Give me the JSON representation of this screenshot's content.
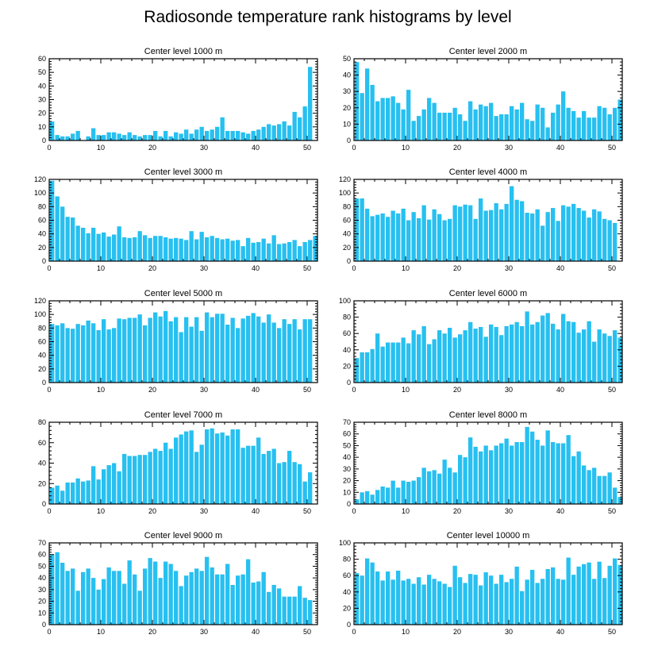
{
  "colors": {
    "bar": "#27c0f0",
    "axis": "#000000",
    "background": "#ffffff"
  },
  "chart_data": {
    "type": "bar",
    "title": "Radiosonde temperature rank histograms by level",
    "xlim": [
      0,
      52
    ],
    "x_ticks": [
      0,
      10,
      20,
      30,
      40,
      50
    ],
    "panels": [
      {
        "title": "Center level 1000 m",
        "ylim": [
          0,
          60
        ],
        "y_ticks": [
          0,
          10,
          20,
          30,
          40,
          50,
          60
        ],
        "values": [
          14,
          4,
          3,
          3,
          5,
          7,
          0,
          3,
          9,
          4,
          4,
          6,
          6,
          5,
          4,
          6,
          4,
          3,
          4,
          4,
          7,
          3,
          7,
          3,
          6,
          5,
          8,
          5,
          8,
          10,
          7,
          8,
          10,
          17,
          7,
          7,
          7,
          6,
          5,
          7,
          8,
          10,
          12,
          11,
          12,
          14,
          11,
          21,
          17,
          25,
          54
        ]
      },
      {
        "title": "Center level 2000 m",
        "ylim": [
          0,
          50
        ],
        "y_ticks": [
          0,
          10,
          20,
          30,
          40,
          50
        ],
        "values": [
          48,
          29,
          44,
          34,
          24,
          26,
          26,
          27,
          23,
          19,
          31,
          12,
          15,
          19,
          26,
          23,
          17,
          17,
          17,
          20,
          16,
          12,
          24,
          19,
          22,
          21,
          23,
          15,
          16,
          16,
          21,
          19,
          23,
          13,
          12,
          22,
          20,
          8,
          17,
          22,
          30,
          20,
          18,
          14,
          18,
          14,
          14,
          21,
          20,
          16,
          20,
          25
        ]
      },
      {
        "title": "Center level 3000 m",
        "ylim": [
          0,
          120
        ],
        "y_ticks": [
          0,
          20,
          40,
          60,
          80,
          100,
          120
        ],
        "values": [
          118,
          95,
          80,
          65,
          64,
          52,
          49,
          41,
          49,
          40,
          42,
          36,
          39,
          51,
          35,
          34,
          35,
          44,
          38,
          34,
          37,
          37,
          35,
          33,
          34,
          33,
          31,
          44,
          32,
          43,
          35,
          37,
          34,
          32,
          33,
          30,
          31,
          22,
          34,
          27,
          28,
          33,
          26,
          38,
          25,
          26,
          28,
          31,
          22,
          28,
          31,
          37
        ]
      },
      {
        "title": "Center level 4000 m",
        "ylim": [
          0,
          120
        ],
        "y_ticks": [
          0,
          20,
          40,
          60,
          80,
          100,
          120
        ],
        "values": [
          92,
          92,
          77,
          66,
          68,
          70,
          65,
          74,
          70,
          77,
          60,
          72,
          63,
          82,
          61,
          76,
          69,
          60,
          62,
          82,
          80,
          83,
          82,
          62,
          92,
          74,
          75,
          85,
          76,
          84,
          110,
          90,
          88,
          71,
          70,
          76,
          52,
          72,
          78,
          59,
          82,
          80,
          84,
          78,
          74,
          64,
          76,
          73,
          62,
          60,
          56
        ]
      },
      {
        "title": "Center level 5000 m",
        "ylim": [
          0,
          120
        ],
        "y_ticks": [
          0,
          20,
          40,
          60,
          80,
          100,
          120
        ],
        "values": [
          86,
          84,
          87,
          80,
          79,
          86,
          84,
          91,
          87,
          77,
          93,
          78,
          80,
          94,
          93,
          95,
          95,
          100,
          84,
          95,
          103,
          97,
          105,
          90,
          96,
          74,
          96,
          82,
          96,
          76,
          103,
          96,
          101,
          101,
          85,
          95,
          80,
          94,
          98,
          102,
          97,
          88,
          100,
          88,
          80,
          93,
          86,
          93,
          78,
          93,
          93
        ]
      },
      {
        "title": "Center level 6000 m",
        "ylim": [
          0,
          100
        ],
        "y_ticks": [
          0,
          20,
          40,
          60,
          80,
          100
        ],
        "values": [
          30,
          37,
          37,
          41,
          60,
          44,
          49,
          49,
          49,
          55,
          48,
          64,
          59,
          69,
          47,
          53,
          64,
          60,
          67,
          55,
          59,
          64,
          74,
          66,
          68,
          56,
          71,
          68,
          58,
          69,
          71,
          74,
          69,
          87,
          71,
          74,
          82,
          85,
          72,
          65,
          84,
          75,
          74,
          61,
          65,
          75,
          50,
          65,
          60,
          57,
          64,
          55
        ]
      },
      {
        "title": "Center level 7000 m",
        "ylim": [
          0,
          80
        ],
        "y_ticks": [
          0,
          20,
          40,
          60,
          80
        ],
        "values": [
          16,
          18,
          13,
          21,
          21,
          25,
          22,
          23,
          37,
          24,
          34,
          38,
          40,
          32,
          49,
          47,
          47,
          48,
          48,
          51,
          54,
          52,
          60,
          54,
          65,
          68,
          71,
          72,
          51,
          58,
          73,
          74,
          69,
          70,
          67,
          73,
          73,
          55,
          57,
          57,
          65,
          49,
          52,
          54,
          40,
          41,
          52,
          41,
          39,
          22,
          31
        ]
      },
      {
        "title": "Center level 8000 m",
        "ylim": [
          0,
          70
        ],
        "y_ticks": [
          0,
          10,
          20,
          30,
          40,
          50,
          60,
          70
        ],
        "values": [
          4,
          10,
          11,
          8,
          12,
          15,
          14,
          20,
          14,
          20,
          19,
          20,
          23,
          31,
          28,
          29,
          26,
          38,
          31,
          27,
          42,
          40,
          57,
          49,
          45,
          50,
          46,
          50,
          52,
          56,
          50,
          53,
          53,
          66,
          62,
          55,
          50,
          63,
          53,
          52,
          52,
          59,
          41,
          45,
          33,
          29,
          31,
          24,
          24,
          27,
          14,
          6
        ]
      },
      {
        "title": "Center level 9000 m",
        "ylim": [
          0,
          70
        ],
        "y_ticks": [
          0,
          10,
          20,
          30,
          40,
          50,
          60,
          70
        ],
        "values": [
          60,
          62,
          53,
          46,
          48,
          29,
          45,
          48,
          40,
          30,
          39,
          49,
          46,
          46,
          35,
          55,
          43,
          29,
          48,
          57,
          54,
          40,
          54,
          52,
          46,
          33,
          42,
          45,
          48,
          46,
          58,
          49,
          43,
          43,
          52,
          34,
          42,
          43,
          56,
          36,
          37,
          45,
          28,
          34,
          31,
          24,
          24,
          24,
          33,
          23,
          21
        ]
      },
      {
        "title": "Center level 10000 m",
        "ylim": [
          0,
          100
        ],
        "y_ticks": [
          0,
          20,
          40,
          60,
          80,
          100
        ],
        "values": [
          63,
          60,
          81,
          76,
          65,
          54,
          65,
          55,
          66,
          54,
          56,
          50,
          58,
          49,
          61,
          56,
          53,
          50,
          46,
          72,
          58,
          51,
          62,
          61,
          48,
          64,
          60,
          50,
          61,
          52,
          56,
          71,
          41,
          55,
          67,
          51,
          56,
          68,
          70,
          56,
          55,
          82,
          61,
          71,
          74,
          76,
          56,
          77,
          57,
          72,
          81,
          73
        ]
      }
    ]
  }
}
